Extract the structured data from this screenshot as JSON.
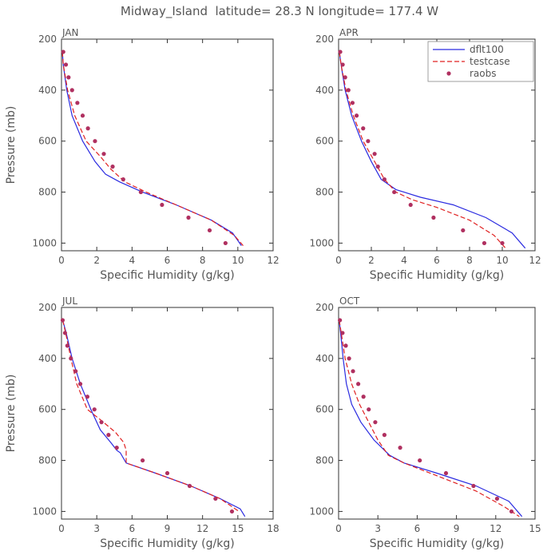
{
  "title": "Midway_Island  latitude= 28.3 N longitude= 177.4 W",
  "ylabel": "Pressure (mb)",
  "xlabel": "Specific Humidity (g/kg)",
  "legend": {
    "entries": [
      "dflt100",
      "testcase",
      "raobs"
    ],
    "placement": "top-right of APR panel"
  },
  "colors": {
    "dflt100": "#2a2ae0",
    "testcase": "#e02020",
    "raobs": "#b03060",
    "axis": "#333333",
    "text": "#555555"
  },
  "chart_data": [
    {
      "type": "line",
      "panel": "JAN",
      "xlim": [
        0,
        12
      ],
      "xticks": [
        0,
        2,
        4,
        6,
        8,
        10,
        12
      ],
      "ylim": [
        200,
        1030
      ],
      "yticks": [
        200,
        400,
        600,
        800,
        1000
      ],
      "y_reversed": true,
      "series": [
        {
          "name": "dflt100",
          "style": "solid",
          "x": [
            0.05,
            0.1,
            0.3,
            0.6,
            1.2,
            1.9,
            2.5,
            3.3,
            4.6,
            6.5,
            8.5,
            9.7,
            10.2
          ],
          "y": [
            250,
            300,
            400,
            500,
            600,
            680,
            730,
            760,
            800,
            850,
            910,
            960,
            1010
          ]
        },
        {
          "name": "testcase",
          "style": "dashed",
          "x": [
            0.05,
            0.1,
            0.35,
            0.75,
            1.4,
            2.2,
            2.8,
            3.6,
            4.8,
            6.5,
            8.5,
            9.8,
            10.3
          ],
          "y": [
            250,
            300,
            400,
            500,
            600,
            660,
            710,
            760,
            800,
            850,
            910,
            970,
            1010
          ]
        },
        {
          "name": "raobs",
          "style": "points",
          "x": [
            0.1,
            0.25,
            0.4,
            0.6,
            0.9,
            1.2,
            1.5,
            1.9,
            2.4,
            2.9,
            3.5,
            4.5,
            5.7,
            7.2,
            8.4,
            9.3
          ],
          "y": [
            250,
            300,
            350,
            400,
            450,
            500,
            550,
            600,
            650,
            700,
            750,
            800,
            850,
            900,
            950,
            1000
          ]
        }
      ]
    },
    {
      "type": "line",
      "panel": "APR",
      "xlim": [
        0,
        12
      ],
      "xticks": [
        0,
        2,
        4,
        6,
        8,
        10,
        12
      ],
      "ylim": [
        200,
        1030
      ],
      "yticks": [
        200,
        400,
        600,
        800,
        1000
      ],
      "y_reversed": true,
      "series": [
        {
          "name": "dflt100",
          "style": "solid",
          "x": [
            0.05,
            0.15,
            0.4,
            0.8,
            1.4,
            2.0,
            2.6,
            3.5,
            5.0,
            7.0,
            9.0,
            10.6,
            11.4
          ],
          "y": [
            250,
            300,
            400,
            500,
            600,
            680,
            750,
            790,
            820,
            850,
            900,
            960,
            1020
          ]
        },
        {
          "name": "testcase",
          "style": "dashed",
          "x": [
            0.05,
            0.15,
            0.45,
            0.9,
            1.5,
            2.2,
            2.8,
            3.5,
            4.5,
            6.0,
            8.0,
            9.5,
            10.2
          ],
          "y": [
            250,
            300,
            400,
            500,
            600,
            680,
            750,
            800,
            830,
            860,
            910,
            970,
            1020
          ]
        },
        {
          "name": "raobs",
          "style": "points",
          "x": [
            0.1,
            0.25,
            0.4,
            0.6,
            0.85,
            1.1,
            1.5,
            1.8,
            2.2,
            2.4,
            2.8,
            3.4,
            4.4,
            5.8,
            7.6,
            8.9,
            10.0
          ],
          "y": [
            250,
            300,
            350,
            400,
            450,
            500,
            550,
            600,
            650,
            700,
            750,
            800,
            850,
            900,
            950,
            1000,
            1000
          ]
        }
      ]
    },
    {
      "type": "line",
      "panel": "JUL",
      "xlim": [
        0,
        18
      ],
      "xticks": [
        0,
        3,
        6,
        9,
        12,
        15,
        18
      ],
      "ylim": [
        200,
        1030
      ],
      "yticks": [
        200,
        400,
        600,
        800,
        1000
      ],
      "y_reversed": true,
      "series": [
        {
          "name": "dflt100",
          "style": "solid",
          "x": [
            0.1,
            0.4,
            0.9,
            1.6,
            2.5,
            3.3,
            4.2,
            4.7,
            5.0,
            5.5,
            8.0,
            11.0,
            13.5,
            15.2,
            15.6
          ],
          "y": [
            250,
            300,
            400,
            500,
            600,
            680,
            730,
            760,
            770,
            810,
            850,
            900,
            950,
            990,
            1020
          ]
        },
        {
          "name": "testcase",
          "style": "dashed",
          "x": [
            0.1,
            0.35,
            0.8,
            1.3,
            2.2,
            3.3,
            4.6,
            5.3,
            5.5,
            5.5,
            8.0,
            11.0,
            13.5,
            15.1
          ],
          "y": [
            250,
            300,
            400,
            500,
            600,
            640,
            690,
            730,
            760,
            810,
            850,
            900,
            950,
            1000
          ]
        },
        {
          "name": "raobs",
          "style": "points",
          "x": [
            0.1,
            0.3,
            0.5,
            0.8,
            1.2,
            1.6,
            2.2,
            2.8,
            3.4,
            4.0,
            4.7,
            6.9,
            9.0,
            10.9,
            13.1,
            14.5
          ],
          "y": [
            250,
            300,
            350,
            400,
            450,
            500,
            550,
            600,
            650,
            700,
            750,
            800,
            850,
            900,
            950,
            1000
          ]
        }
      ]
    },
    {
      "type": "line",
      "panel": "OCT",
      "xlim": [
        0,
        15
      ],
      "xticks": [
        0,
        3,
        6,
        9,
        12,
        15
      ],
      "ylim": [
        200,
        1030
      ],
      "yticks": [
        200,
        400,
        600,
        800,
        1000
      ],
      "y_reversed": true,
      "series": [
        {
          "name": "dflt100",
          "style": "solid",
          "x": [
            0.05,
            0.15,
            0.35,
            0.6,
            1.0,
            1.7,
            2.7,
            3.9,
            5.0,
            7.5,
            10.5,
            13.0,
            14.0
          ],
          "y": [
            250,
            300,
            400,
            500,
            580,
            650,
            720,
            780,
            810,
            850,
            900,
            960,
            1020
          ]
        },
        {
          "name": "testcase",
          "style": "dashed",
          "x": [
            0.05,
            0.2,
            0.5,
            1.0,
            1.6,
            2.3,
            3.0,
            3.8,
            5.0,
            7.5,
            10.5,
            12.6,
            13.8
          ],
          "y": [
            250,
            300,
            400,
            500,
            580,
            650,
            720,
            780,
            810,
            860,
            920,
            980,
            1020
          ]
        },
        {
          "name": "raobs",
          "style": "points",
          "x": [
            0.1,
            0.3,
            0.55,
            0.8,
            1.1,
            1.5,
            1.9,
            2.3,
            2.8,
            3.5,
            4.7,
            6.2,
            8.2,
            10.3,
            12.1,
            13.2
          ],
          "y": [
            250,
            300,
            350,
            400,
            450,
            500,
            550,
            600,
            650,
            700,
            750,
            800,
            850,
            900,
            950,
            1000
          ]
        }
      ]
    }
  ]
}
